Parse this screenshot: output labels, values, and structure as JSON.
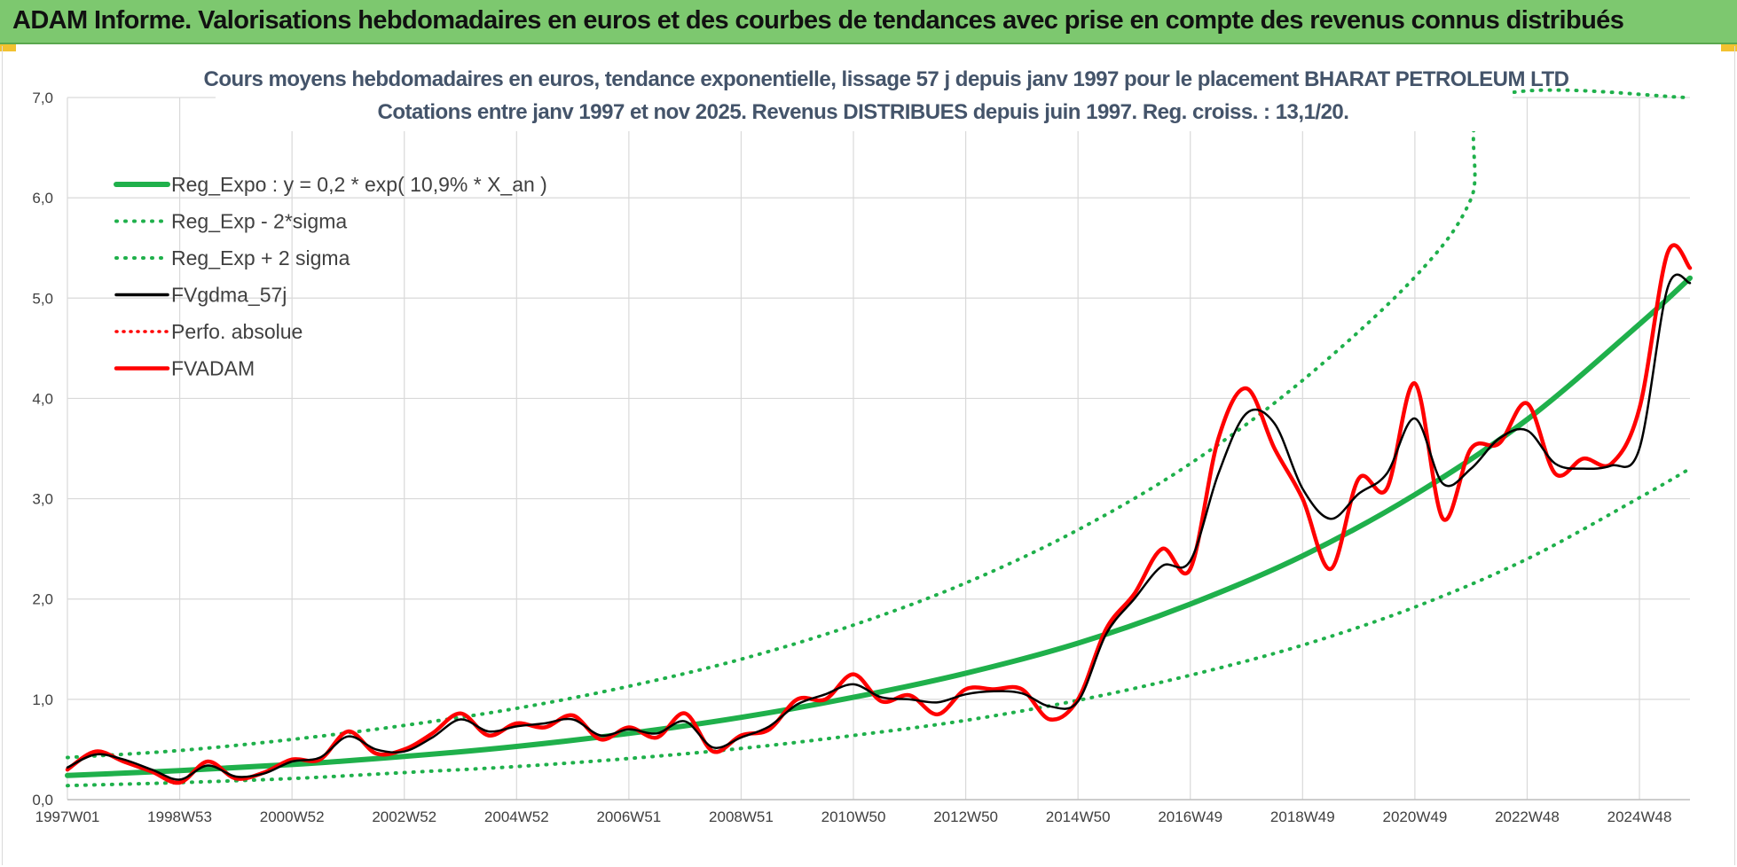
{
  "header": {
    "title": "ADAM Informe. Valorisations hebdomadaires en euros et des courbes de tendances avec prise en compte des revenus connus distribués"
  },
  "colors": {
    "header_bg": "#7dc86f",
    "trend_green": "#1fb04b",
    "band_green": "#1fb04b",
    "fvgdma_black": "#000000",
    "fvadam_red": "#ff0000",
    "grid": "#d9d9d9"
  },
  "chart_data": {
    "type": "line",
    "title": [
      "Cours moyens hebdomadaires en euros, tendance exponentielle, lissage 57 j depuis janv 1997  pour le placement BHARAT PETROLEUM LTD",
      "Cotations entre janv 1997 et nov 2025. Revenus DISTRIBUES depuis juin 1997. Reg. croiss. : 13,1/20."
    ],
    "x_tick_labels": [
      "1997W01",
      "1998W53",
      "2000W52",
      "2002W52",
      "2004W52",
      "2006W51",
      "2008W51",
      "2010W50",
      "2012W50",
      "2014W50",
      "2016W49",
      "2018W49",
      "2020W49",
      "2022W48",
      "2024W48"
    ],
    "x_tick_years": [
      1997.0,
      1999.0,
      2001.0,
      2003.0,
      2005.0,
      2007.0,
      2009.0,
      2011.0,
      2013.0,
      2015.0,
      2017.0,
      2019.0,
      2021.0,
      2023.0,
      2025.0
    ],
    "xlim": [
      1997.0,
      2025.9
    ],
    "ylim": [
      0,
      7
    ],
    "y_ticks": [
      0,
      1,
      2,
      3,
      4,
      5,
      6,
      7
    ],
    "y_tick_labels": [
      "0,0",
      "1,0",
      "2,0",
      "3,0",
      "4,0",
      "5,0",
      "6,0",
      "7,0"
    ],
    "grid": true,
    "legend_position": "top-left",
    "series": [
      {
        "name": "Reg_Expo : y = 0,2 * exp( 10,9% *  X_an )",
        "style": "solid-thick-green",
        "x": [
          1997.0,
          1999.0,
          2001.0,
          2003.0,
          2005.0,
          2007.0,
          2009.0,
          2011.0,
          2013.0,
          2015.0,
          2017.0,
          2019.0,
          2021.0,
          2023.0,
          2025.0,
          2025.9
        ],
        "y": [
          0.24,
          0.29,
          0.35,
          0.43,
          0.53,
          0.66,
          0.82,
          1.02,
          1.26,
          1.56,
          1.95,
          2.43,
          3.04,
          3.79,
          4.74,
          5.2
        ]
      },
      {
        "name": "Reg_Exp - 2*sigma",
        "style": "dotted-green",
        "x": [
          1997.0,
          1999.0,
          2001.0,
          2003.0,
          2005.0,
          2007.0,
          2009.0,
          2011.0,
          2013.0,
          2015.0,
          2017.0,
          2019.0,
          2021.0,
          2023.0,
          2025.0,
          2025.9
        ],
        "y": [
          0.14,
          0.17,
          0.21,
          0.27,
          0.33,
          0.41,
          0.51,
          0.64,
          0.79,
          0.99,
          1.24,
          1.54,
          1.92,
          2.4,
          3.01,
          3.3
        ]
      },
      {
        "name": "Reg_Exp + 2 sigma",
        "style": "dotted-green",
        "x": [
          1997.0,
          1999.0,
          2001.0,
          2003.0,
          2005.0,
          2007.0,
          2009.0,
          2011.0,
          2013.0,
          2015.0,
          2017.0,
          2019.0,
          2021.0,
          2022.0,
          2022.4,
          2025.9
        ],
        "y": [
          0.42,
          0.49,
          0.6,
          0.74,
          0.91,
          1.13,
          1.4,
          1.74,
          2.16,
          2.69,
          3.35,
          4.18,
          5.21,
          5.99,
          7.0,
          7.0
        ]
      },
      {
        "name": "FVgdma_57j",
        "style": "solid-black",
        "x": [
          1997.0,
          1997.5,
          1998.0,
          1998.5,
          1999.0,
          1999.5,
          2000.0,
          2000.5,
          2001.0,
          2001.5,
          2002.0,
          2002.5,
          2003.0,
          2003.5,
          2004.0,
          2004.5,
          2005.0,
          2005.5,
          2006.0,
          2006.5,
          2007.0,
          2007.5,
          2008.0,
          2008.5,
          2009.0,
          2009.5,
          2010.0,
          2010.5,
          2011.0,
          2011.5,
          2012.0,
          2012.5,
          2013.0,
          2013.5,
          2014.0,
          2014.5,
          2015.0,
          2015.5,
          2016.0,
          2016.5,
          2017.0,
          2017.5,
          2018.0,
          2018.5,
          2019.0,
          2019.5,
          2020.0,
          2020.5,
          2021.0,
          2021.5,
          2022.0,
          2022.5,
          2023.0,
          2023.5,
          2024.0,
          2024.5,
          2025.0,
          2025.5,
          2025.9
        ],
        "y": [
          0.32,
          0.45,
          0.4,
          0.3,
          0.2,
          0.34,
          0.23,
          0.26,
          0.38,
          0.42,
          0.63,
          0.5,
          0.48,
          0.62,
          0.8,
          0.68,
          0.73,
          0.76,
          0.8,
          0.64,
          0.7,
          0.66,
          0.78,
          0.52,
          0.62,
          0.73,
          0.95,
          1.05,
          1.15,
          1.02,
          1.0,
          0.97,
          1.05,
          1.08,
          1.06,
          0.93,
          0.98,
          1.65,
          2.0,
          2.33,
          2.38,
          3.25,
          3.85,
          3.75,
          3.1,
          2.8,
          3.05,
          3.25,
          3.8,
          3.15,
          3.3,
          3.6,
          3.68,
          3.35,
          3.3,
          3.33,
          3.5,
          5.1,
          5.15
        ]
      },
      {
        "name": "Perfo. absolue",
        "style": "dotted-red",
        "x": [],
        "y": []
      },
      {
        "name": "FVADAM",
        "style": "solid-thick-red",
        "x": [
          1997.0,
          1997.5,
          1998.0,
          1998.5,
          1999.0,
          1999.5,
          2000.0,
          2000.5,
          2001.0,
          2001.5,
          2002.0,
          2002.5,
          2003.0,
          2003.5,
          2004.0,
          2004.5,
          2005.0,
          2005.5,
          2006.0,
          2006.5,
          2007.0,
          2007.5,
          2008.0,
          2008.5,
          2009.0,
          2009.5,
          2010.0,
          2010.5,
          2011.0,
          2011.5,
          2012.0,
          2012.5,
          2013.0,
          2013.5,
          2014.0,
          2014.5,
          2015.0,
          2015.5,
          2016.0,
          2016.5,
          2017.0,
          2017.5,
          2018.0,
          2018.5,
          2019.0,
          2019.5,
          2020.0,
          2020.5,
          2021.0,
          2021.5,
          2022.0,
          2022.5,
          2023.0,
          2023.5,
          2024.0,
          2024.5,
          2025.0,
          2025.5,
          2025.9
        ],
        "y": [
          0.3,
          0.48,
          0.38,
          0.28,
          0.17,
          0.38,
          0.21,
          0.27,
          0.4,
          0.4,
          0.68,
          0.46,
          0.5,
          0.66,
          0.86,
          0.64,
          0.76,
          0.72,
          0.84,
          0.6,
          0.72,
          0.62,
          0.86,
          0.48,
          0.64,
          0.7,
          1.0,
          1.0,
          1.25,
          0.98,
          1.04,
          0.85,
          1.1,
          1.1,
          1.1,
          0.8,
          1.0,
          1.7,
          2.05,
          2.5,
          2.3,
          3.6,
          4.1,
          3.5,
          3.0,
          2.3,
          3.2,
          3.1,
          4.15,
          2.8,
          3.5,
          3.55,
          3.95,
          3.25,
          3.4,
          3.35,
          3.9,
          5.45,
          5.3
        ]
      }
    ]
  }
}
